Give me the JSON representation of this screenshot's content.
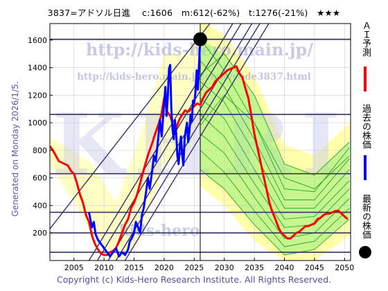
{
  "header": {
    "title": "3837=アドソル日進　 c:1606　m:612(-62%)　t:1276(-21%)　★★★"
  },
  "side_caption": "Generated on Monday 2026/1/5.",
  "footer": {
    "copyright": "Copyright (c) Kids-Hero Research Institute. All Rights Reserved."
  },
  "watermarks": {
    "url_big": "http://kids-hero.main.jp/",
    "url_small": "http://kids-hero.main.jp/code/code3837.html",
    "big_letters": "KHRI",
    "bottom": "kids-hero"
  },
  "legend": [
    {
      "label": "ＡＩ予測",
      "color": "#ff0000",
      "marker": "line"
    },
    {
      "label": "過去の株価",
      "color": "#0000ff",
      "marker": "line"
    },
    {
      "label": "最新の株価",
      "color": "#000000",
      "marker": "dot"
    }
  ],
  "colors": {
    "band_fill": "#ffffaa",
    "projection_fill": "#99ee77",
    "projection_lines": "#22aa22",
    "channel_lines": "#333366",
    "h_lines": "#333366",
    "past": "#0000ff",
    "ai": "#ff0000"
  },
  "chart_data": {
    "type": "line",
    "xlim": [
      2001,
      2051
    ],
    "ylim": [
      0,
      1720
    ],
    "x_ticks": [
      2005,
      2010,
      2015,
      2020,
      2025,
      2030,
      2035,
      2040,
      2045,
      2050
    ],
    "y_ticks": [
      200,
      400,
      600,
      800,
      1000,
      1200,
      1400,
      1600
    ],
    "grid": true,
    "latest_point": {
      "x": 2026.0,
      "y": 1606
    },
    "current_x": 2026.0,
    "h_levels": [
      1606,
      1060,
      630,
      350,
      200,
      60
    ],
    "series": [
      {
        "key": "ai",
        "x": [
          2001,
          2001.5,
          2002,
          2002.5,
          2003,
          2003.5,
          2004,
          2004.5,
          2005,
          2005.5,
          2006,
          2006.5,
          2007,
          2007.5,
          2008,
          2008.5,
          2009,
          2009.5,
          2010,
          2010.5,
          2011,
          2011.5,
          2012,
          2012.5,
          2013,
          2013.5,
          2014,
          2014.5,
          2015,
          2015.5,
          2016,
          2016.5,
          2017,
          2017.5,
          2018,
          2018.5,
          2019,
          2019.5,
          2020,
          2020.5,
          2021,
          2021.5,
          2022,
          2022.5,
          2023,
          2023.5,
          2024,
          2024.5,
          2025,
          2025.5,
          2026,
          2026.5,
          2027,
          2027.5,
          2028,
          2028.5,
          2029,
          2029.5,
          2030,
          2030.5,
          2031,
          2031.5,
          2032,
          2032.5,
          2033,
          2033.5,
          2034,
          2034.5,
          2035,
          2035.5,
          2036,
          2036.5,
          2037,
          2037.5,
          2038,
          2038.5,
          2039,
          2039.5,
          2040,
          2040.5,
          2041,
          2041.5,
          2042,
          2042.5,
          2043,
          2043.5,
          2044,
          2044.5,
          2045,
          2045.5,
          2046,
          2046.5,
          2047,
          2047.5,
          2048,
          2048.5,
          2049,
          2049.5,
          2050,
          2050.5
        ],
        "y": [
          830,
          800,
          760,
          720,
          710,
          700,
          690,
          650,
          630,
          560,
          480,
          420,
          330,
          280,
          180,
          120,
          80,
          50,
          40,
          40,
          60,
          70,
          90,
          140,
          200,
          260,
          300,
          380,
          420,
          480,
          560,
          640,
          720,
          790,
          850,
          920,
          980,
          1050,
          1180,
          1080,
          1050,
          980,
          960,
          1020,
          1060,
          1090,
          1080,
          1100,
          1120,
          1140,
          1130,
          1180,
          1220,
          1240,
          1260,
          1300,
          1320,
          1340,
          1360,
          1380,
          1390,
          1400,
          1410,
          1360,
          1330,
          1250,
          1180,
          1050,
          920,
          820,
          720,
          620,
          520,
          420,
          350,
          300,
          240,
          200,
          180,
          160,
          160,
          180,
          200,
          210,
          230,
          250,
          250,
          260,
          270,
          300,
          310,
          330,
          340,
          340,
          350,
          360,
          360,
          340,
          320,
          300
        ]
      },
      {
        "key": "past",
        "x": [
          2007.5,
          2008,
          2008.3,
          2008.6,
          2009,
          2009.5,
          2010,
          2010.5,
          2011,
          2011.5,
          2012,
          2012.5,
          2013,
          2013.5,
          2014,
          2014.3,
          2014.6,
          2015,
          2015.3,
          2015.6,
          2016,
          2016.3,
          2016.6,
          2017,
          2017.3,
          2017.6,
          2018,
          2018.3,
          2018.6,
          2019,
          2019.3,
          2019.6,
          2020,
          2020.2,
          2020.4,
          2020.6,
          2020.8,
          2021,
          2021.2,
          2021.4,
          2021.6,
          2021.8,
          2022,
          2022.2,
          2022.4,
          2022.6,
          2022.8,
          2023,
          2023.2,
          2023.4,
          2023.6,
          2023.8,
          2024,
          2024.2,
          2024.4,
          2024.6,
          2024.8,
          2025,
          2025.2,
          2025.4,
          2025.6,
          2025.8,
          2026
        ],
        "y": [
          350,
          240,
          280,
          190,
          150,
          120,
          90,
          60,
          30,
          60,
          90,
          30,
          60,
          40,
          80,
          140,
          160,
          200,
          280,
          250,
          200,
          330,
          380,
          500,
          600,
          520,
          650,
          760,
          720,
          880,
          1020,
          900,
          1150,
          1260,
          1050,
          1180,
          1390,
          1420,
          1100,
          950,
          880,
          1020,
          920,
          760,
          700,
          820,
          900,
          760,
          690,
          880,
          950,
          1000,
          860,
          940,
          1060,
          1010,
          1160,
          1140,
          1220,
          1380,
          1240,
          1430,
          1606
        ]
      }
    ],
    "projections": [
      {
        "x": [
          2026,
          2030,
          2035,
          2040,
          2045,
          2050.8
        ],
        "y": [
          1606,
          1380,
          1000,
          520,
          500,
          820
        ]
      },
      {
        "x": [
          2026,
          2030,
          2035,
          2040,
          2045,
          2050.8
        ],
        "y": [
          1450,
          1260,
          880,
          440,
          440,
          740
        ]
      },
      {
        "x": [
          2026,
          2030,
          2035,
          2040,
          2045,
          2050.8
        ],
        "y": [
          1300,
          1150,
          780,
          380,
          380,
          660
        ]
      },
      {
        "x": [
          2026,
          2030,
          2035,
          2040,
          2045,
          2050.8
        ],
        "y": [
          1180,
          1030,
          660,
          300,
          320,
          580
        ]
      },
      {
        "x": [
          2026,
          2030,
          2035,
          2040,
          2045,
          2050.8
        ],
        "y": [
          1060,
          900,
          560,
          240,
          260,
          520
        ]
      },
      {
        "x": [
          2026,
          2030,
          2035,
          2040,
          2045,
          2050.8
        ],
        "y": [
          920,
          780,
          460,
          160,
          200,
          450
        ]
      },
      {
        "x": [
          2026,
          2030,
          2035,
          2040,
          2045,
          2050.8
        ],
        "y": [
          800,
          640,
          360,
          100,
          140,
          380
        ]
      },
      {
        "x": [
          2026,
          2030,
          2035,
          2040,
          2045,
          2050.8
        ],
        "y": [
          660,
          520,
          260,
          40,
          80,
          300
        ]
      },
      {
        "x": [
          2026,
          2030,
          2035,
          2040,
          2045,
          2050.8
        ],
        "y": [
          1350,
          1500,
          1200,
          700,
          620,
          860
        ]
      },
      {
        "x": [
          2026,
          2030,
          2035,
          2040,
          2045,
          2050.8
        ],
        "y": [
          980,
          1200,
          1000,
          600,
          520,
          760
        ]
      }
    ],
    "channel_lines": [
      {
        "x": [
          2001,
          2027.6
        ],
        "y": [
          230,
          1720
        ]
      },
      {
        "x": [
          2007.5,
          2031.4
        ],
        "y": [
          0,
          1720
        ]
      },
      {
        "x": [
          2008.9,
          2032.8
        ],
        "y": [
          0,
          1720
        ]
      },
      {
        "x": [
          2010.7,
          2034.6
        ],
        "y": [
          0,
          1720
        ]
      },
      {
        "x": [
          2012.0,
          2035.9
        ],
        "y": [
          0,
          1720
        ]
      },
      {
        "x": [
          2013.5,
          2037.4
        ],
        "y": [
          0,
          1720
        ]
      }
    ]
  }
}
